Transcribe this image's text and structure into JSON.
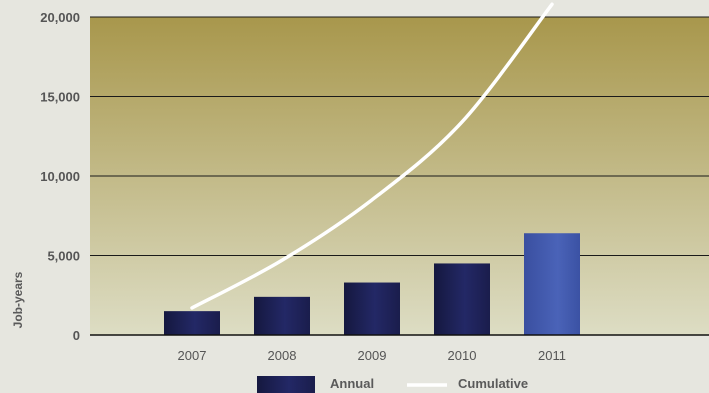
{
  "chart_data": {
    "type": "bar",
    "categories": [
      "2007",
      "2008",
      "2009",
      "2010",
      "2011"
    ],
    "series": [
      {
        "name": "Annual",
        "type": "bar",
        "values": [
          1500,
          2400,
          3300,
          4500,
          6400
        ]
      },
      {
        "name": "Cumulative",
        "type": "line",
        "values": [
          1700,
          4700,
          8500,
          13400,
          20800
        ]
      }
    ],
    "title": "",
    "xlabel": "",
    "ylabel": "Job-years",
    "ylim": [
      0,
      20000
    ],
    "yticks": [
      {
        "value": 0,
        "label": "0"
      },
      {
        "value": 5000,
        "label": "5,000"
      },
      {
        "value": 10000,
        "label": "10,000"
      },
      {
        "value": 15000,
        "label": "15,000"
      },
      {
        "value": 20000,
        "label": "20,000"
      }
    ],
    "grid": true,
    "legend_position": "bottom",
    "colors": {
      "bar_dark": "#1c1f4e",
      "bar_highlight": "#3d55a8",
      "line": "#ffffff",
      "plot_top": "#a8974c",
      "plot_bottom": "#ddddc4",
      "page_bg": "#e6e6df"
    }
  }
}
